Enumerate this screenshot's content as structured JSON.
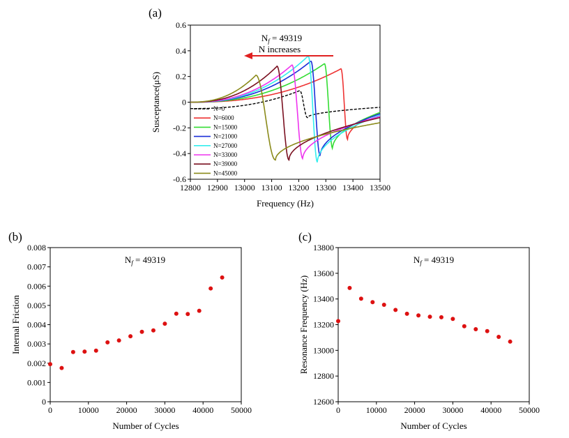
{
  "chart_data": [
    {
      "panel_label": "(a)",
      "type": "line",
      "xlabel": "Frequency (Hz)",
      "ylabel": "Susceptance(μS)",
      "xlim": [
        12800,
        13500
      ],
      "ylim": [
        -0.6,
        0.6
      ],
      "xticks": [
        "12800",
        "12900",
        "13000",
        "13100",
        "13200",
        "13300",
        "13400",
        "13500"
      ],
      "yticks": [
        "0.6",
        "0.4",
        "0.2",
        "0",
        "-0.2",
        "-0.4",
        "-0.6"
      ],
      "annotation_nf": "N_f = 49319",
      "annotation_nf_base": "N",
      "annotation_nf_sub": "f",
      "annotation_nf_value": " = 49319",
      "annotation_arrow": "N increases",
      "legend_position": "lower-left",
      "series": [
        {
          "name": "N=0",
          "color": "#000000",
          "dashed": true,
          "f0": 13218,
          "halfwidth": 14,
          "peak": 0.09,
          "trough": -0.12,
          "baseline": -0.05,
          "end": -0.04
        },
        {
          "name": "N=6000",
          "color": "#ee3333",
          "dashed": false,
          "f0": 13368,
          "halfwidth": 12,
          "peak": 0.26,
          "trough": -0.29,
          "baseline": 0.0,
          "end": -0.08
        },
        {
          "name": "N=15000",
          "color": "#33dd33",
          "dashed": false,
          "f0": 13310,
          "halfwidth": 15,
          "peak": 0.3,
          "trough": -0.36,
          "baseline": 0.0,
          "end": -0.08
        },
        {
          "name": "N=21000",
          "color": "#1a2ed8",
          "dashed": false,
          "f0": 13262,
          "halfwidth": 17,
          "peak": 0.32,
          "trough": -0.42,
          "baseline": 0.0,
          "end": -0.09
        },
        {
          "name": "N=27000",
          "color": "#33eeee",
          "dashed": false,
          "f0": 13252,
          "halfwidth": 17,
          "peak": 0.36,
          "trough": -0.47,
          "baseline": 0.0,
          "end": -0.1
        },
        {
          "name": "N=33000",
          "color": "#ee33ee",
          "dashed": false,
          "f0": 13195,
          "halfwidth": 20,
          "peak": 0.29,
          "trough": -0.44,
          "baseline": 0.0,
          "end": -0.11
        },
        {
          "name": "N=39000",
          "color": "#7a1020",
          "dashed": false,
          "f0": 13142,
          "halfwidth": 22,
          "peak": 0.28,
          "trough": -0.45,
          "baseline": 0.0,
          "end": -0.12
        },
        {
          "name": "N=45000",
          "color": "#8a8a1a",
          "dashed": false,
          "f0": 13078,
          "halfwidth": 36,
          "peak": 0.21,
          "trough": -0.45,
          "baseline": 0.0,
          "end": -0.16
        }
      ]
    },
    {
      "panel_label": "(b)",
      "type": "scatter",
      "xlabel": "Number of Cycles",
      "ylabel": "Internal Friction",
      "xlim": [
        0,
        50000
      ],
      "ylim": [
        0,
        0.008
      ],
      "xticks": [
        "0",
        "10000",
        "20000",
        "30000",
        "40000",
        "50000"
      ],
      "yticks": [
        "0.008",
        "0.007",
        "0.006",
        "0.005",
        "0.004",
        "0.003",
        "0.002",
        "0.001",
        "0"
      ],
      "annotation_nf_base": "N",
      "annotation_nf_sub": "f",
      "annotation_nf_value": " = 49319",
      "marker_color": "#dd1111",
      "x": [
        0,
        3000,
        6000,
        9000,
        12000,
        15000,
        18000,
        21000,
        24000,
        27000,
        30000,
        33000,
        36000,
        39000,
        42000,
        45000
      ],
      "y": [
        0.00195,
        0.00175,
        0.00258,
        0.0026,
        0.00265,
        0.00308,
        0.00318,
        0.0034,
        0.00363,
        0.0037,
        0.00405,
        0.00457,
        0.00455,
        0.00472,
        0.00588,
        0.00645
      ]
    },
    {
      "panel_label": "(c)",
      "type": "scatter",
      "xlabel": "Number of Cycles",
      "ylabel": "Resonance Frequency (Hz)",
      "xlim": [
        0,
        50000
      ],
      "ylim": [
        12600,
        13800
      ],
      "xticks": [
        "0",
        "10000",
        "20000",
        "30000",
        "40000",
        "50000"
      ],
      "yticks": [
        "13800",
        "13600",
        "13400",
        "13200",
        "13000",
        "12800",
        "12600"
      ],
      "annotation_nf_base": "N",
      "annotation_nf_sub": "f",
      "annotation_nf_value": " = 49319",
      "marker_color": "#dd1111",
      "x": [
        0,
        3000,
        6000,
        9000,
        12000,
        15000,
        18000,
        21000,
        24000,
        27000,
        30000,
        33000,
        36000,
        39000,
        42000,
        45000
      ],
      "y": [
        13228,
        13486,
        13402,
        13375,
        13355,
        13315,
        13285,
        13272,
        13262,
        13258,
        13245,
        13188,
        13165,
        13150,
        13105,
        13068
      ]
    }
  ]
}
